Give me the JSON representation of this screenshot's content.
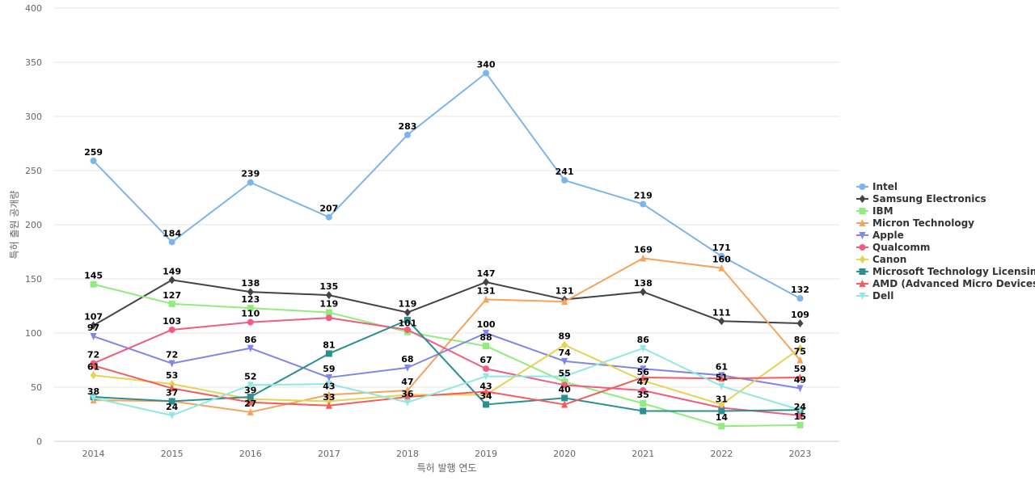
{
  "chart_data": {
    "type": "line",
    "xlabel": "특허 발행 연도",
    "ylabel": "특허 출원 공개량",
    "ylim": [
      0,
      400
    ],
    "y_ticks": [
      0,
      50,
      100,
      150,
      200,
      250,
      300,
      350,
      400
    ],
    "grid": true,
    "legend_position": "right",
    "x": [
      "2014",
      "2015",
      "2016",
      "2017",
      "2018",
      "2019",
      "2020",
      "2021",
      "2022",
      "2023"
    ],
    "series": [
      {
        "name": "Intel",
        "color": "#7cb5ec",
        "marker": "circle",
        "values": [
          259,
          184,
          239,
          207,
          283,
          340,
          241,
          219,
          171,
          132
        ]
      },
      {
        "name": "Samsung Electronics",
        "color": "#434348",
        "marker": "diamond",
        "values": [
          107,
          149,
          138,
          135,
          119,
          147,
          131,
          138,
          111,
          109
        ]
      },
      {
        "name": "IBM",
        "color": "#90ed7d",
        "marker": "square",
        "values": [
          145,
          127,
          123,
          119,
          101,
          88,
          55,
          35,
          14,
          15
        ]
      },
      {
        "name": "Micron Technology",
        "color": "#f7a35c",
        "marker": "triangle",
        "values": [
          38,
          37,
          27,
          43,
          47,
          131,
          129,
          169,
          160,
          75
        ]
      },
      {
        "name": "Apple",
        "color": "#8085e9",
        "marker": "triangle-down",
        "values": [
          97,
          72,
          86,
          59,
          68,
          100,
          74,
          67,
          61,
          49
        ]
      },
      {
        "name": "Qualcomm",
        "color": "#f15c80",
        "marker": "circle",
        "values": [
          72,
          103,
          110,
          114,
          103,
          67,
          52,
          47,
          31,
          24
        ]
      },
      {
        "name": "Canon",
        "color": "#e4d354",
        "marker": "diamond",
        "values": [
          61,
          53,
          39,
          37,
          43,
          43,
          89,
          56,
          34,
          86
        ]
      },
      {
        "name": "Microsoft Technology Licensing",
        "color": "#2b908f",
        "marker": "square",
        "values": [
          41,
          37,
          41,
          81,
          112,
          34,
          40,
          28,
          28,
          29
        ]
      },
      {
        "name": "AMD (Advanced Micro Devices)",
        "color": "#f45b5b",
        "marker": "triangle",
        "values": [
          70,
          49,
          36,
          33,
          41,
          46,
          34,
          59,
          58,
          59
        ]
      },
      {
        "name": "Dell",
        "color": "#91e8e1",
        "marker": "triangle-down",
        "values": [
          40,
          24,
          52,
          53,
          36,
          60,
          60,
          86,
          51,
          29
        ]
      }
    ],
    "data_labels": [
      {
        "x": "2014",
        "text": "259",
        "series": "Intel"
      },
      {
        "x": "2014",
        "text": "145",
        "series": "IBM"
      },
      {
        "x": "2014",
        "text": "107",
        "series": "Samsung Electronics"
      },
      {
        "x": "2014",
        "text": "97",
        "series": "Apple"
      },
      {
        "x": "2014",
        "text": "72",
        "series": "Qualcomm"
      },
      {
        "x": "2014",
        "text": "61",
        "series": "Canon"
      },
      {
        "x": "2014",
        "text": "38",
        "series": "Micron Technology"
      },
      {
        "x": "2015",
        "text": "184",
        "series": "Intel"
      },
      {
        "x": "2015",
        "text": "149",
        "series": "Samsung Electronics"
      },
      {
        "x": "2015",
        "text": "127",
        "series": "IBM"
      },
      {
        "x": "2015",
        "text": "103",
        "series": "Qualcomm"
      },
      {
        "x": "2015",
        "text": "72",
        "series": "Apple"
      },
      {
        "x": "2015",
        "text": "53",
        "series": "Canon"
      },
      {
        "x": "2015",
        "text": "37",
        "series": "Microsoft Technology Licensing"
      },
      {
        "x": "2015",
        "text": "24",
        "series": "Dell"
      },
      {
        "x": "2016",
        "text": "239",
        "series": "Intel"
      },
      {
        "x": "2016",
        "text": "138",
        "series": "Samsung Electronics"
      },
      {
        "x": "2016",
        "text": "123",
        "series": "IBM"
      },
      {
        "x": "2016",
        "text": "110",
        "series": "Qualcomm"
      },
      {
        "x": "2016",
        "text": "86",
        "series": "Apple"
      },
      {
        "x": "2016",
        "text": "52",
        "series": "Dell"
      },
      {
        "x": "2016",
        "text": "39",
        "series": "Canon"
      },
      {
        "x": "2016",
        "text": "27",
        "series": "Micron Technology"
      },
      {
        "x": "2017",
        "text": "207",
        "series": "Intel"
      },
      {
        "x": "2017",
        "text": "135",
        "series": "Samsung Electronics"
      },
      {
        "x": "2017",
        "text": "119",
        "series": "IBM"
      },
      {
        "x": "2017",
        "text": "81",
        "series": "Microsoft Technology Licensing"
      },
      {
        "x": "2017",
        "text": "59",
        "series": "Apple"
      },
      {
        "x": "2017",
        "text": "43",
        "series": "Micron Technology"
      },
      {
        "x": "2017",
        "text": "33",
        "series": "AMD (Advanced Micro Devices)"
      },
      {
        "x": "2018",
        "text": "283",
        "series": "Intel"
      },
      {
        "x": "2018",
        "text": "119",
        "series": "Samsung Electronics"
      },
      {
        "x": "2018",
        "text": "101",
        "series": "IBM"
      },
      {
        "x": "2018",
        "text": "68",
        "series": "Apple"
      },
      {
        "x": "2018",
        "text": "47",
        "series": "Micron Technology"
      },
      {
        "x": "2018",
        "text": "36",
        "series": "Dell"
      },
      {
        "x": "2019",
        "text": "340",
        "series": "Intel"
      },
      {
        "x": "2019",
        "text": "147",
        "series": "Samsung Electronics"
      },
      {
        "x": "2019",
        "text": "131",
        "series": "Micron Technology"
      },
      {
        "x": "2019",
        "text": "100",
        "series": "Apple"
      },
      {
        "x": "2019",
        "text": "88",
        "series": "IBM"
      },
      {
        "x": "2019",
        "text": "67",
        "series": "Qualcomm"
      },
      {
        "x": "2019",
        "text": "43",
        "series": "Canon"
      },
      {
        "x": "2019",
        "text": "34",
        "series": "Microsoft Technology Licensing"
      },
      {
        "x": "2020",
        "text": "241",
        "series": "Intel"
      },
      {
        "x": "2020",
        "text": "131",
        "series": "Samsung Electronics"
      },
      {
        "x": "2020",
        "text": "89",
        "series": "Canon"
      },
      {
        "x": "2020",
        "text": "74",
        "series": "Apple"
      },
      {
        "x": "2020",
        "text": "55",
        "series": "IBM"
      },
      {
        "x": "2020",
        "text": "40",
        "series": "Microsoft Technology Licensing"
      },
      {
        "x": "2021",
        "text": "219",
        "series": "Intel"
      },
      {
        "x": "2021",
        "text": "169",
        "series": "Micron Technology"
      },
      {
        "x": "2021",
        "text": "138",
        "series": "Samsung Electronics"
      },
      {
        "x": "2021",
        "text": "86",
        "series": "Dell"
      },
      {
        "x": "2021",
        "text": "67",
        "series": "Apple"
      },
      {
        "x": "2021",
        "text": "56",
        "series": "Canon"
      },
      {
        "x": "2021",
        "text": "47",
        "series": "Qualcomm"
      },
      {
        "x": "2021",
        "text": "35",
        "series": "IBM"
      },
      {
        "x": "2022",
        "text": "171",
        "series": "Intel"
      },
      {
        "x": "2022",
        "text": "160",
        "series": "Micron Technology"
      },
      {
        "x": "2022",
        "text": "111",
        "series": "Samsung Electronics"
      },
      {
        "x": "2022",
        "text": "61",
        "series": "Apple"
      },
      {
        "x": "2022",
        "text": "51",
        "series": "Dell"
      },
      {
        "x": "2022",
        "text": "31",
        "series": "Qualcomm"
      },
      {
        "x": "2022",
        "text": "14",
        "series": "IBM"
      },
      {
        "x": "2023",
        "text": "132",
        "series": "Intel"
      },
      {
        "x": "2023",
        "text": "109",
        "series": "Samsung Electronics"
      },
      {
        "x": "2023",
        "text": "86",
        "series": "Canon"
      },
      {
        "x": "2023",
        "text": "75",
        "series": "Micron Technology"
      },
      {
        "x": "2023",
        "text": "59",
        "series": "AMD (Advanced Micro Devices)"
      },
      {
        "x": "2023",
        "text": "49",
        "series": "Apple"
      },
      {
        "x": "2023",
        "text": "24",
        "series": "Qualcomm"
      },
      {
        "x": "2023",
        "text": "15",
        "series": "IBM"
      }
    ]
  }
}
